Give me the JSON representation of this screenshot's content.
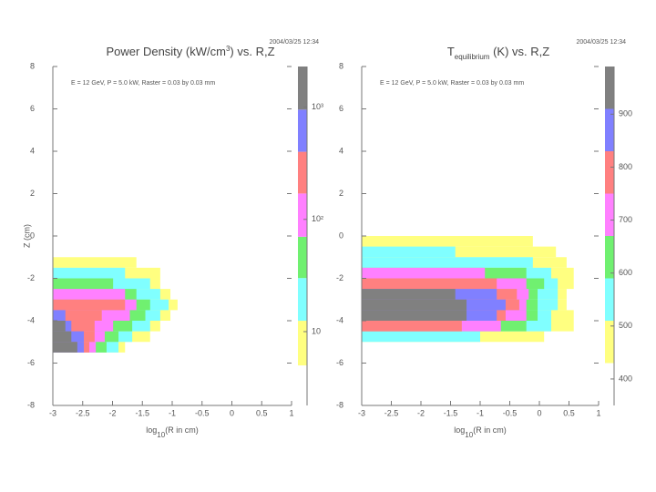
{
  "chart_data": [
    {
      "type": "contour",
      "title_parts": [
        {
          "text": "Power Density (kW/cm"
        },
        {
          "sup": "3"
        },
        {
          "text": ") vs. R,Z"
        }
      ],
      "timestamp": "2004/03/25 12:34",
      "annotation": "E = 12 GeV, P = 5.0 kW, Raster = 0.03 by 0.03 mm",
      "ylabel": "Z (cm)",
      "xlabel_parts": [
        {
          "text": "log"
        },
        {
          "sub": "10"
        },
        {
          "text": "(R in cm)"
        }
      ],
      "xlim": [
        -3,
        1
      ],
      "xticks": [
        -3,
        -2.5,
        -2,
        -1.5,
        -1,
        -0.5,
        0,
        0.5,
        1
      ],
      "ylim": [
        -8,
        8
      ],
      "yticks": [
        8,
        6,
        4,
        2,
        0,
        -2,
        -4,
        -6,
        -8
      ],
      "z_edges": [
        -1,
        -1.5,
        -2,
        -2.5,
        -3,
        -3.5,
        -4,
        -4.5,
        -5,
        -5.5
      ],
      "series": [
        {
          "color": "#ffff80",
          "values": [
            -1.6,
            -1.2,
            -1.2,
            -1.03,
            -0.91,
            -1.03,
            -1.2,
            -1.37,
            -1.79
          ]
        },
        {
          "color": "#80ffff",
          "values": [
            null,
            -1.79,
            -1.37,
            -1.2,
            -1.06,
            -1.2,
            -1.37,
            -1.67,
            -1.9
          ]
        },
        {
          "color": "#70f070",
          "values": [
            null,
            null,
            -1.99,
            -1.6,
            -1.37,
            -1.45,
            -1.67,
            -1.9,
            -2.1
          ]
        },
        {
          "color": "#ff80ff",
          "values": [
            null,
            null,
            null,
            -1.79,
            -1.6,
            -1.71,
            -1.99,
            -2.13,
            -2.28
          ]
        },
        {
          "color": "#ff8080",
          "values": [
            null,
            null,
            null,
            null,
            -1.79,
            -2.18,
            -2.3,
            -2.3,
            -2.39
          ]
        },
        {
          "color": "#8080ff",
          "values": [
            null,
            null,
            null,
            null,
            null,
            -2.79,
            -2.69,
            -2.48,
            -2.48
          ]
        },
        {
          "color": "#808080",
          "values": [
            null,
            null,
            null,
            null,
            null,
            null,
            -2.79,
            -2.69,
            -2.59
          ]
        }
      ],
      "colorbar": {
        "log": true,
        "lim": [
          2.2,
          2300
        ],
        "bounds": [
          5,
          12.5,
          30,
          70,
          170,
          400,
          950,
          2300
        ],
        "ticks": [
          10,
          {
            "value": 100,
            "label": "10²"
          },
          {
            "value": 1000,
            "label": "10³"
          }
        ]
      }
    },
    {
      "type": "contour",
      "title_parts": [
        {
          "text": "T"
        },
        {
          "sub": "equilibrium"
        },
        {
          "text": " (K) vs. R,Z"
        }
      ],
      "timestamp": "2004/03/25 12:34",
      "annotation": "E = 12 GeV, P = 5.0 kW, Raster = 0.03 by 0.03 mm",
      "xlabel_parts": [
        {
          "text": "log"
        },
        {
          "sub": "10"
        },
        {
          "text": "(R in cm)"
        }
      ],
      "xlim": [
        -3,
        1
      ],
      "xticks": [
        -3,
        -2.5,
        -2,
        -1.5,
        -1,
        -0.5,
        0,
        0.5,
        1
      ],
      "ylim": [
        -8,
        8
      ],
      "yticks": [
        8,
        6,
        4,
        2,
        0,
        -2,
        -4,
        -6,
        -8
      ],
      "z_edges": [
        0,
        -0.5,
        -1,
        -1.5,
        -2,
        -2.5,
        -3,
        -3.5,
        -4,
        -4.5,
        -5
      ],
      "series": [
        {
          "color": "#ffff80",
          "values": [
            -0.11,
            0.28,
            0.46,
            0.58,
            0.58,
            0.46,
            0.46,
            0.58,
            0.58,
            0.08
          ]
        },
        {
          "color": "#80ffff",
          "values": [
            null,
            -1.42,
            -0.11,
            0.2,
            0.31,
            0.31,
            0.31,
            0.2,
            0.2,
            -1.0
          ]
        },
        {
          "color": "#70f070",
          "values": [
            null,
            null,
            null,
            -0.22,
            0.08,
            -0.03,
            -0.03,
            -0.03,
            -0.22,
            null
          ]
        },
        {
          "color": "#ff80ff",
          "values": [
            null,
            null,
            null,
            -0.92,
            -0.22,
            -0.18,
            -0.22,
            -0.22,
            -0.65,
            null
          ]
        },
        {
          "color": "#ff8080",
          "values": [
            null,
            null,
            null,
            null,
            -0.72,
            -0.38,
            -0.34,
            -0.57,
            -1.31,
            null
          ]
        },
        {
          "color": "#8080ff",
          "values": [
            null,
            null,
            null,
            null,
            null,
            -0.72,
            -0.57,
            -0.72,
            null,
            null
          ]
        },
        {
          "color": "#808080",
          "values": [
            null,
            null,
            null,
            null,
            null,
            -1.42,
            -1.23,
            -1.23,
            null,
            null
          ]
        }
      ],
      "colorbar": {
        "log": false,
        "lim": [
          350,
          990
        ],
        "bounds": [
          430,
          510,
          590,
          670,
          750,
          830,
          910,
          990
        ],
        "ticks": [
          400,
          500,
          600,
          700,
          800,
          900
        ]
      }
    }
  ]
}
